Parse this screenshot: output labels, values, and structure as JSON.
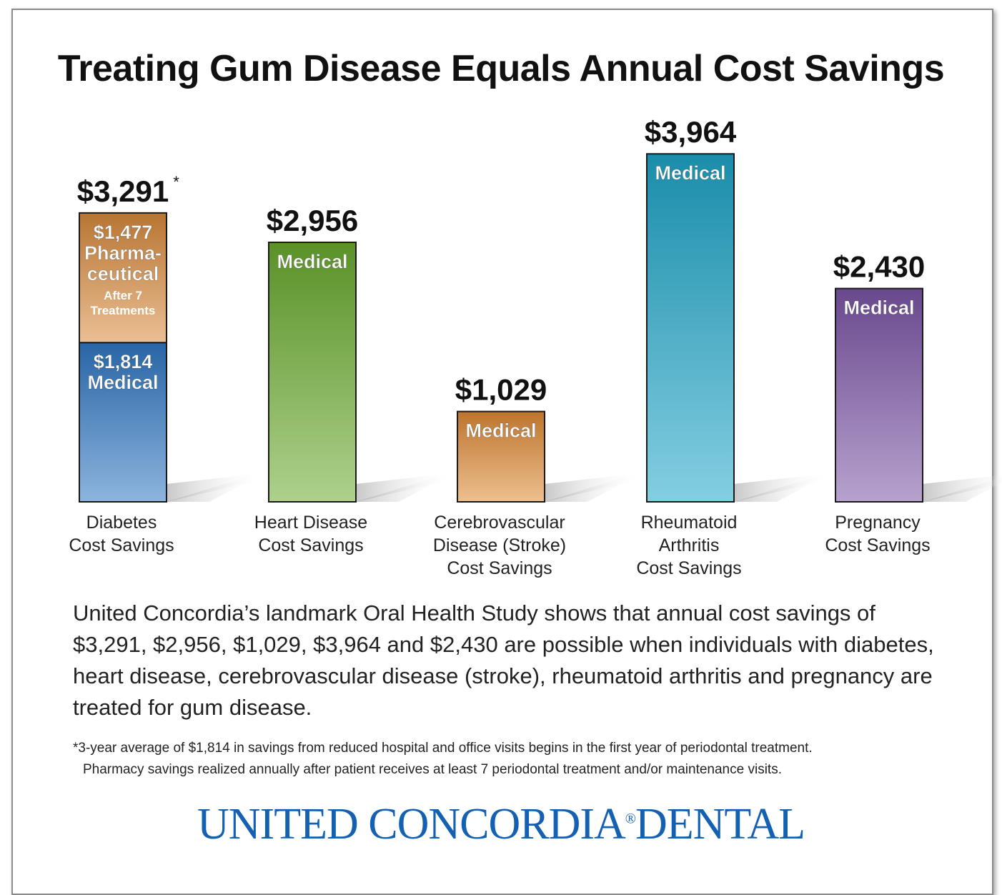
{
  "title": "Treating Gum Disease Equals Annual Cost Savings",
  "chart_data": {
    "type": "bar",
    "stacked": true,
    "title": "Treating Gum Disease Equals Annual Cost Savings",
    "categories": [
      [
        "Diabetes",
        "Cost Savings"
      ],
      [
        "Heart Disease",
        "Cost Savings"
      ],
      [
        "Cerebrovascular",
        "Disease (Stroke)",
        "Cost Savings"
      ],
      [
        "Rheumatoid",
        "Arthritis",
        "Cost Savings"
      ],
      [
        "Pregnancy",
        "Cost Savings"
      ]
    ],
    "bars": [
      {
        "total_label": "$3,291",
        "total_marker": "*",
        "segments": [
          {
            "value": 1814,
            "label_lines": [
              "$1,814",
              "Medical"
            ],
            "color": "#2f77c2"
          },
          {
            "value": 1477,
            "label_lines": [
              "$1,477",
              "Pharma-",
              "ceutical"
            ],
            "sub_lines": [
              "After 7",
              "Treatments"
            ],
            "color": "#d98a3c"
          }
        ]
      },
      {
        "total_label": "$2,956",
        "segments": [
          {
            "value": 2956,
            "label_lines": [
              "Medical"
            ],
            "color": "#6aab2e"
          }
        ]
      },
      {
        "total_label": "$1,029",
        "segments": [
          {
            "value": 1029,
            "label_lines": [
              "Medical"
            ],
            "color": "#de8a35"
          }
        ]
      },
      {
        "total_label": "$3,964",
        "segments": [
          {
            "value": 3964,
            "label_lines": [
              "Medical"
            ],
            "color": "#1fa6c8"
          }
        ]
      },
      {
        "total_label": "$2,430",
        "segments": [
          {
            "value": 2430,
            "label_lines": [
              "Medical"
            ],
            "color": "#7c55a6"
          }
        ]
      }
    ]
  },
  "description": "United Concordia’s landmark Oral Health Study shows that annual cost savings of $3,291, $2,956, $1,029, $3,964 and $2,430 are possible when individuals with diabetes, heart disease, cerebrovascular disease (stroke), rheumatoid arthritis and pregnancy are treated for gum disease.",
  "footnote": {
    "line1": "*3-year average of $1,814 in savings from reduced hospital and office visits begins in the first year of periodontal treatment.",
    "line2": "Pharmacy savings realized annually after patient receives at least 7 periodontal treatment and/or maintenance visits."
  },
  "logo": {
    "text": "UNITED CONCORDIA",
    "reg": "®",
    "text2": "DENTAL"
  }
}
